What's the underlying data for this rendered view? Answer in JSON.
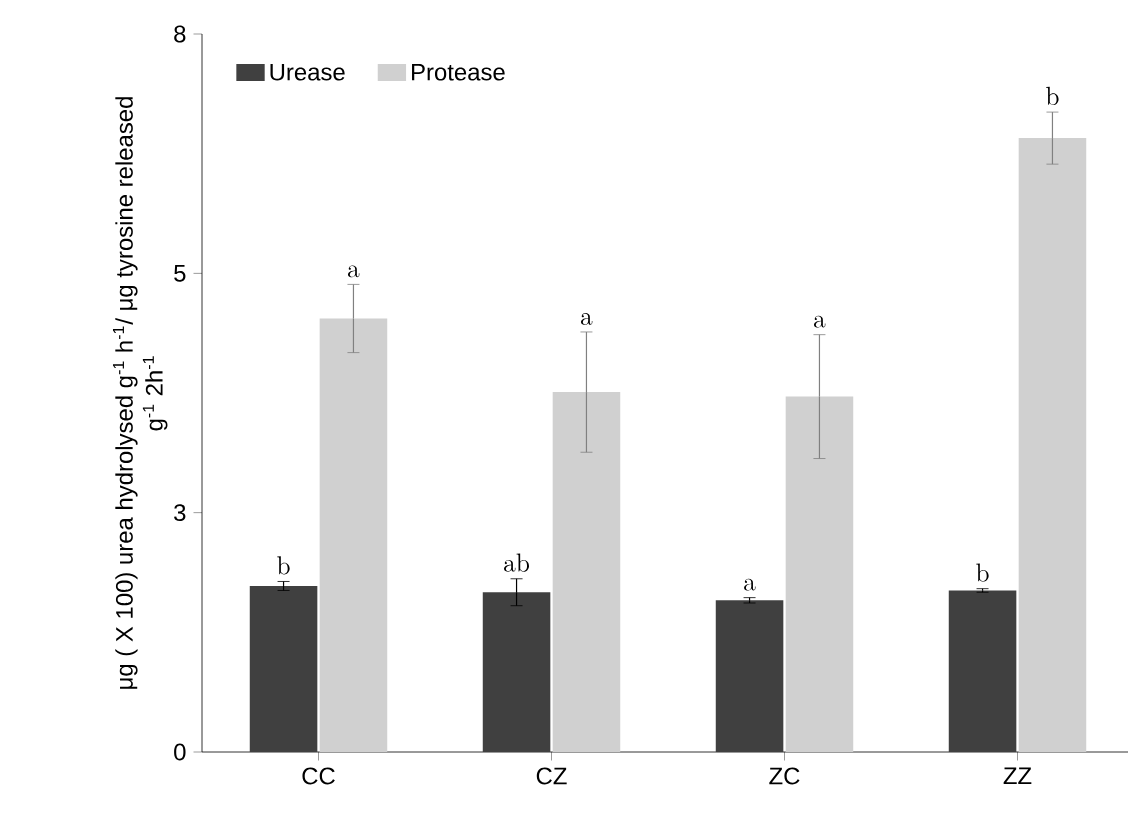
{
  "chart_data": {
    "type": "bar",
    "ylabel": "μg ( X 100) urea hydrolysed g$^{-1}$ h$^{-1}$/ μg tyrosine released g$^{-1}$ 2h$^{-1}$",
    "categories": [
      "CC",
      "CZ",
      "ZC",
      "ZZ"
    ],
    "series": [
      {
        "name": "Urease",
        "color": "#404040",
        "values": [
          1.85,
          1.78,
          1.69,
          1.8
        ],
        "errors": [
          0.05,
          0.15,
          0.03,
          0.02
        ]
      },
      {
        "name": "Protease",
        "color": "#d0d0d0",
        "values": [
          4.83,
          4.01,
          3.96,
          6.84
        ],
        "errors": [
          0.38,
          0.67,
          0.69,
          0.29
        ]
      }
    ],
    "ylim": [
      0,
      8
    ],
    "yticks": [
      0,
      {
        "value": 2.667,
        "label": "3"
      },
      {
        "value": 5.333,
        "label": "5"
      },
      8
    ],
    "legend": "top left",
    "grid": false,
    "annotations": [
      {
        "text": "b",
        "x": "CC",
        "y": 1.85
      },
      {
        "text": "a",
        "x": "CC",
        "y": 4.83
      },
      {
        "text": "ab",
        "x": "CZ",
        "y": 1.78
      },
      {
        "text": "a",
        "x": "CZ",
        "y": 4.01
      },
      {
        "text": "a",
        "x": "ZC",
        "y": 1.69
      },
      {
        "text": "a",
        "x": "ZC",
        "y": 3.96
      },
      {
        "text": "b",
        "x": "ZZ",
        "y": 1.8
      },
      {
        "text": "b",
        "x": "ZZ",
        "y": 6.84
      }
    ]
  }
}
